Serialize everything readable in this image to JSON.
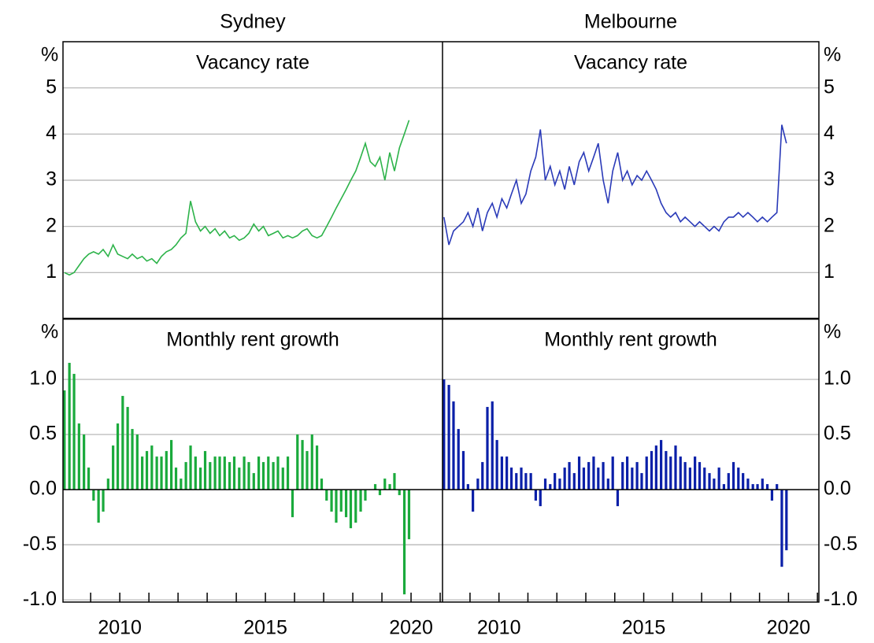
{
  "chart_data": [
    {
      "type": "line",
      "title": "Sydney",
      "subtitle": "Vacancy rate",
      "ylabel": "%",
      "yaxis_side": "left",
      "color": "#2db34a",
      "grid": true,
      "xlim": [
        2008.05,
        2021.08
      ],
      "ylim": [
        0,
        6
      ],
      "yticks": [
        1,
        2,
        3,
        4,
        5
      ],
      "x": [
        2008.1,
        2008.27,
        2008.43,
        2008.6,
        2008.77,
        2008.93,
        2009.1,
        2009.27,
        2009.43,
        2009.6,
        2009.77,
        2009.93,
        2010.1,
        2010.27,
        2010.43,
        2010.6,
        2010.77,
        2010.93,
        2011.1,
        2011.27,
        2011.43,
        2011.6,
        2011.77,
        2011.93,
        2012.1,
        2012.27,
        2012.43,
        2012.6,
        2012.77,
        2012.93,
        2013.1,
        2013.27,
        2013.43,
        2013.6,
        2013.77,
        2013.93,
        2014.1,
        2014.27,
        2014.43,
        2014.6,
        2014.77,
        2014.93,
        2015.1,
        2015.27,
        2015.43,
        2015.6,
        2015.77,
        2015.93,
        2016.1,
        2016.27,
        2016.43,
        2016.6,
        2016.77,
        2016.93,
        2017.1,
        2017.27,
        2017.43,
        2017.6,
        2017.77,
        2017.93,
        2018.1,
        2018.27,
        2018.43,
        2018.6,
        2018.77,
        2018.93,
        2019.1,
        2019.27,
        2019.43,
        2019.6,
        2019.77,
        2019.93
      ],
      "values": [
        1.0,
        0.95,
        1.0,
        1.15,
        1.3,
        1.4,
        1.45,
        1.4,
        1.5,
        1.35,
        1.6,
        1.4,
        1.35,
        1.3,
        1.4,
        1.3,
        1.35,
        1.25,
        1.3,
        1.2,
        1.35,
        1.45,
        1.5,
        1.6,
        1.75,
        1.85,
        2.55,
        2.1,
        1.9,
        2.0,
        1.85,
        1.95,
        1.8,
        1.9,
        1.75,
        1.8,
        1.7,
        1.75,
        1.85,
        2.05,
        1.9,
        2.0,
        1.8,
        1.85,
        1.9,
        1.75,
        1.8,
        1.75,
        1.8,
        1.9,
        1.95,
        1.8,
        1.75,
        1.8,
        2.0,
        2.2,
        2.4,
        2.6,
        2.8,
        3.0,
        3.2,
        3.5,
        3.8,
        3.4,
        3.3,
        3.5,
        3.0,
        3.6,
        3.2,
        3.7,
        4.0,
        4.3
      ]
    },
    {
      "type": "line",
      "title": "Melbourne",
      "subtitle": "Vacancy rate",
      "ylabel": "%",
      "yaxis_side": "right",
      "color": "#2a3ab8",
      "grid": true,
      "xlim": [
        2008.05,
        2021.05
      ],
      "ylim": [
        0,
        6
      ],
      "yticks": [
        1,
        2,
        3,
        4,
        5
      ],
      "x": [
        2008.1,
        2008.27,
        2008.43,
        2008.6,
        2008.77,
        2008.93,
        2009.1,
        2009.27,
        2009.43,
        2009.6,
        2009.77,
        2009.93,
        2010.1,
        2010.27,
        2010.43,
        2010.6,
        2010.77,
        2010.93,
        2011.1,
        2011.27,
        2011.43,
        2011.6,
        2011.77,
        2011.93,
        2012.1,
        2012.27,
        2012.43,
        2012.6,
        2012.77,
        2012.93,
        2013.1,
        2013.27,
        2013.43,
        2013.6,
        2013.77,
        2013.93,
        2014.1,
        2014.27,
        2014.43,
        2014.6,
        2014.77,
        2014.93,
        2015.1,
        2015.27,
        2015.43,
        2015.6,
        2015.77,
        2015.93,
        2016.1,
        2016.27,
        2016.43,
        2016.6,
        2016.77,
        2016.93,
        2017.1,
        2017.27,
        2017.43,
        2017.6,
        2017.77,
        2017.93,
        2018.1,
        2018.27,
        2018.43,
        2018.6,
        2018.77,
        2018.93,
        2019.1,
        2019.27,
        2019.43,
        2019.6,
        2019.77,
        2019.93
      ],
      "values": [
        2.2,
        1.6,
        1.9,
        2.0,
        2.1,
        2.3,
        2.0,
        2.4,
        1.9,
        2.3,
        2.5,
        2.2,
        2.6,
        2.4,
        2.7,
        3.0,
        2.5,
        2.7,
        3.2,
        3.5,
        4.1,
        3.0,
        3.3,
        2.9,
        3.2,
        2.8,
        3.3,
        2.9,
        3.4,
        3.6,
        3.2,
        3.5,
        3.8,
        3.0,
        2.5,
        3.2,
        3.6,
        3.0,
        3.2,
        2.9,
        3.1,
        3.0,
        3.2,
        3.0,
        2.8,
        2.5,
        2.3,
        2.2,
        2.3,
        2.1,
        2.2,
        2.1,
        2.0,
        2.1,
        2.0,
        1.9,
        2.0,
        1.9,
        2.1,
        2.2,
        2.2,
        2.3,
        2.2,
        2.3,
        2.2,
        2.1,
        2.2,
        2.1,
        2.2,
        2.3,
        4.2,
        3.8
      ]
    },
    {
      "type": "bar",
      "subtitle": "Monthly rent growth",
      "ylabel": "%",
      "yaxis_side": "left",
      "color": "#1aaa3c",
      "grid": true,
      "xlim": [
        2008.05,
        2021.08
      ],
      "ylim": [
        -1.02,
        1.55
      ],
      "yticks": [
        {
          "value": -1.0,
          "label": "-1.0"
        },
        {
          "value": -0.5,
          "label": "-0.5"
        },
        {
          "value": 0.0,
          "label": "0.0"
        },
        0.5,
        {
          "value": 1.0,
          "label": "1.0"
        }
      ],
      "xticks": [
        2010,
        2015,
        2020
      ],
      "xminorticks": [
        2009,
        2010,
        2011,
        2012,
        2013,
        2014,
        2015,
        2016,
        2017,
        2018,
        2019,
        2020,
        2021
      ],
      "x": [
        2008.1,
        2008.27,
        2008.43,
        2008.6,
        2008.77,
        2008.93,
        2009.1,
        2009.27,
        2009.43,
        2009.6,
        2009.77,
        2009.93,
        2010.1,
        2010.27,
        2010.43,
        2010.6,
        2010.77,
        2010.93,
        2011.1,
        2011.27,
        2011.43,
        2011.6,
        2011.77,
        2011.93,
        2012.1,
        2012.27,
        2012.43,
        2012.6,
        2012.77,
        2012.93,
        2013.1,
        2013.27,
        2013.43,
        2013.6,
        2013.77,
        2013.93,
        2014.1,
        2014.27,
        2014.43,
        2014.6,
        2014.77,
        2014.93,
        2015.1,
        2015.27,
        2015.43,
        2015.6,
        2015.77,
        2015.93,
        2016.1,
        2016.27,
        2016.43,
        2016.6,
        2016.77,
        2016.93,
        2017.1,
        2017.27,
        2017.43,
        2017.6,
        2017.77,
        2017.93,
        2018.1,
        2018.27,
        2018.43,
        2018.6,
        2018.77,
        2018.93,
        2019.1,
        2019.27,
        2019.43,
        2019.6,
        2019.77,
        2019.93
      ],
      "values": [
        0.9,
        1.15,
        1.05,
        0.6,
        0.5,
        0.2,
        -0.1,
        -0.3,
        -0.2,
        0.1,
        0.4,
        0.6,
        0.85,
        0.75,
        0.55,
        0.5,
        0.3,
        0.35,
        0.4,
        0.3,
        0.3,
        0.35,
        0.45,
        0.2,
        0.1,
        0.25,
        0.4,
        0.3,
        0.2,
        0.35,
        0.25,
        0.3,
        0.3,
        0.3,
        0.25,
        0.3,
        0.2,
        0.3,
        0.25,
        0.15,
        0.3,
        0.25,
        0.3,
        0.25,
        0.3,
        0.2,
        0.3,
        -0.25,
        0.5,
        0.45,
        0.35,
        0.5,
        0.4,
        0.1,
        -0.1,
        -0.2,
        -0.3,
        -0.2,
        -0.25,
        -0.35,
        -0.3,
        -0.2,
        -0.1,
        0.0,
        0.05,
        -0.05,
        0.1,
        0.05,
        0.15,
        -0.05,
        -0.95,
        -0.45
      ]
    },
    {
      "type": "bar",
      "subtitle": "Monthly rent growth",
      "ylabel": "%",
      "yaxis_side": "right",
      "color": "#0a1fa8",
      "grid": true,
      "xlim": [
        2008.05,
        2021.05
      ],
      "ylim": [
        -1.02,
        1.55
      ],
      "yticks": [
        {
          "value": -1.0,
          "label": "-1.0"
        },
        {
          "value": -0.5,
          "label": "-0.5"
        },
        {
          "value": 0.0,
          "label": "0.0"
        },
        0.5,
        {
          "value": 1.0,
          "label": "1.0"
        }
      ],
      "xticks": [
        2010,
        2015,
        2020
      ],
      "xminorticks": [
        2009,
        2010,
        2011,
        2012,
        2013,
        2014,
        2015,
        2016,
        2017,
        2018,
        2019,
        2020,
        2021
      ],
      "x": [
        2008.1,
        2008.27,
        2008.43,
        2008.6,
        2008.77,
        2008.93,
        2009.1,
        2009.27,
        2009.43,
        2009.6,
        2009.77,
        2009.93,
        2010.1,
        2010.27,
        2010.43,
        2010.6,
        2010.77,
        2010.93,
        2011.1,
        2011.27,
        2011.43,
        2011.6,
        2011.77,
        2011.93,
        2012.1,
        2012.27,
        2012.43,
        2012.6,
        2012.77,
        2012.93,
        2013.1,
        2013.27,
        2013.43,
        2013.6,
        2013.77,
        2013.93,
        2014.1,
        2014.27,
        2014.43,
        2014.6,
        2014.77,
        2014.93,
        2015.1,
        2015.27,
        2015.43,
        2015.6,
        2015.77,
        2015.93,
        2016.1,
        2016.27,
        2016.43,
        2016.6,
        2016.77,
        2016.93,
        2017.1,
        2017.27,
        2017.43,
        2017.6,
        2017.77,
        2017.93,
        2018.1,
        2018.27,
        2018.43,
        2018.6,
        2018.77,
        2018.93,
        2019.1,
        2019.27,
        2019.43,
        2019.6,
        2019.77,
        2019.93
      ],
      "values": [
        1.0,
        0.95,
        0.8,
        0.55,
        0.35,
        0.05,
        -0.2,
        0.1,
        0.25,
        0.75,
        0.8,
        0.45,
        0.3,
        0.3,
        0.2,
        0.15,
        0.2,
        0.15,
        0.15,
        -0.1,
        -0.15,
        0.1,
        0.05,
        0.15,
        0.1,
        0.2,
        0.25,
        0.15,
        0.3,
        0.2,
        0.25,
        0.3,
        0.2,
        0.25,
        0.1,
        0.3,
        -0.15,
        0.25,
        0.3,
        0.2,
        0.25,
        0.15,
        0.3,
        0.35,
        0.4,
        0.45,
        0.35,
        0.3,
        0.4,
        0.3,
        0.25,
        0.2,
        0.3,
        0.25,
        0.2,
        0.15,
        0.1,
        0.2,
        0.05,
        0.15,
        0.25,
        0.2,
        0.15,
        0.1,
        0.05,
        0.05,
        0.1,
        0.05,
        -0.1,
        0.05,
        -0.7,
        -0.55
      ]
    }
  ]
}
